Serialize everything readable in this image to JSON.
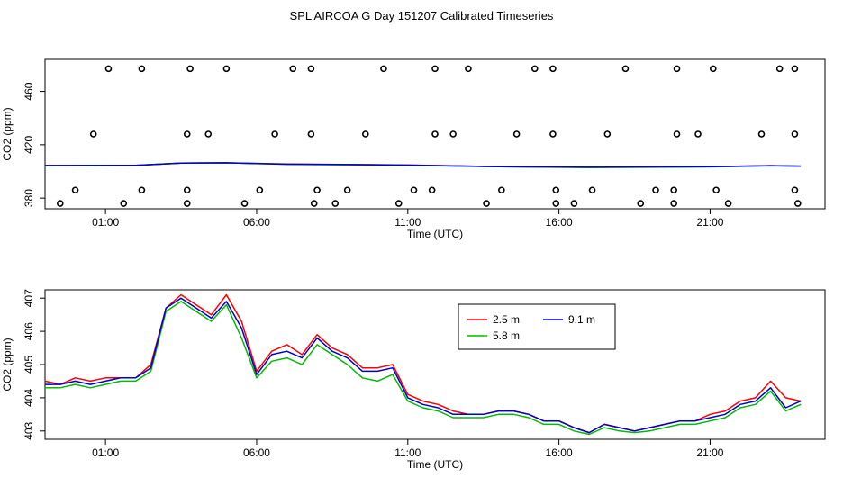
{
  "title": "SPL AIRCOA G  Day 151207  Calibrated Timeseries",
  "chart_data": [
    {
      "type": "scatter+line",
      "xlabel": "Time (UTC)",
      "ylabel": "CO2 (ppm)",
      "x_units": "hours UTC",
      "xlim": [
        -1.0,
        24.8
      ],
      "ylim": [
        372,
        484
      ],
      "x_ticks": [
        {
          "value": 1,
          "label": "01:00"
        },
        {
          "value": 6,
          "label": "06:00"
        },
        {
          "value": 11,
          "label": "11:00"
        },
        {
          "value": 16,
          "label": "16:00"
        },
        {
          "value": 21,
          "label": "21:00"
        }
      ],
      "y_ticks": [
        {
          "value": 380,
          "label": "380"
        },
        {
          "value": 420,
          "label": "420"
        },
        {
          "value": 460,
          "label": "460"
        }
      ],
      "calibration_points": [
        [
          1.1,
          477
        ],
        [
          2.2,
          477
        ],
        [
          3.8,
          477
        ],
        [
          5.0,
          477
        ],
        [
          7.2,
          477
        ],
        [
          7.8,
          477
        ],
        [
          10.2,
          477
        ],
        [
          11.9,
          477
        ],
        [
          13.0,
          477
        ],
        [
          15.2,
          477
        ],
        [
          15.8,
          477
        ],
        [
          18.2,
          477
        ],
        [
          19.9,
          477
        ],
        [
          21.1,
          477
        ],
        [
          23.3,
          477
        ],
        [
          23.8,
          477
        ],
        [
          0.6,
          428
        ],
        [
          3.7,
          428
        ],
        [
          4.4,
          428
        ],
        [
          6.6,
          428
        ],
        [
          7.8,
          428
        ],
        [
          9.6,
          428
        ],
        [
          11.9,
          428
        ],
        [
          12.5,
          428
        ],
        [
          14.6,
          428
        ],
        [
          15.8,
          428
        ],
        [
          17.6,
          428
        ],
        [
          19.9,
          428
        ],
        [
          20.6,
          428
        ],
        [
          22.7,
          428
        ],
        [
          23.8,
          428
        ],
        [
          0.0,
          386
        ],
        [
          2.2,
          386
        ],
        [
          3.7,
          386
        ],
        [
          6.1,
          386
        ],
        [
          8.0,
          386
        ],
        [
          9.0,
          386
        ],
        [
          11.2,
          386
        ],
        [
          11.8,
          386
        ],
        [
          14.1,
          386
        ],
        [
          15.9,
          386
        ],
        [
          17.1,
          386
        ],
        [
          19.2,
          386
        ],
        [
          19.8,
          386
        ],
        [
          21.2,
          386
        ],
        [
          23.8,
          386
        ],
        [
          -0.5,
          376
        ],
        [
          1.6,
          376
        ],
        [
          3.7,
          376
        ],
        [
          5.6,
          376
        ],
        [
          7.9,
          376
        ],
        [
          8.6,
          376
        ],
        [
          10.7,
          376
        ],
        [
          13.6,
          376
        ],
        [
          15.9,
          376
        ],
        [
          16.5,
          376
        ],
        [
          18.7,
          376
        ],
        [
          19.8,
          376
        ],
        [
          21.6,
          376
        ],
        [
          23.9,
          376
        ]
      ],
      "series": [
        {
          "color": "#ff0000",
          "x": [
            -1,
            2,
            3.5,
            5,
            7,
            9,
            11,
            14,
            17,
            21,
            23,
            24
          ],
          "y": [
            404.5,
            404.6,
            406.3,
            406.5,
            405.5,
            405.2,
            404.8,
            403.6,
            403.1,
            403.6,
            404.3,
            404.0
          ]
        },
        {
          "color": "#00bb00",
          "x": [
            -1,
            2,
            3.5,
            5,
            7,
            9,
            11,
            14,
            17,
            21,
            23,
            24
          ],
          "y": [
            404.3,
            404.5,
            406.2,
            406.4,
            405.3,
            405.0,
            404.6,
            403.5,
            403.0,
            403.4,
            404.2,
            403.9
          ]
        },
        {
          "color": "#0000cc",
          "x": [
            -1,
            2,
            3.5,
            5,
            7,
            9,
            11,
            14,
            17,
            21,
            23,
            24
          ],
          "y": [
            404.4,
            404.6,
            406.3,
            406.5,
            405.4,
            405.1,
            404.7,
            403.6,
            403.1,
            403.5,
            404.3,
            404.0
          ]
        }
      ]
    },
    {
      "type": "line",
      "xlabel": "Time (UTC)",
      "ylabel": "CO2 (ppm)",
      "x_units": "hours UTC",
      "xlim": [
        -1.0,
        24.8
      ],
      "ylim": [
        402.75,
        407.25
      ],
      "x_ticks": [
        {
          "value": 1,
          "label": "01:00"
        },
        {
          "value": 6,
          "label": "06:00"
        },
        {
          "value": 11,
          "label": "11:00"
        },
        {
          "value": 16,
          "label": "16:00"
        },
        {
          "value": 21,
          "label": "21:00"
        }
      ],
      "y_ticks": [
        {
          "value": 403,
          "label": "403"
        },
        {
          "value": 404,
          "label": "404"
        },
        {
          "value": 405,
          "label": "405"
        },
        {
          "value": 406,
          "label": "406"
        },
        {
          "value": 407,
          "label": "407"
        }
      ],
      "legend_position": "top-right",
      "x": [
        -1,
        -0.5,
        0,
        0.5,
        1,
        1.5,
        2,
        2.5,
        3,
        3.5,
        4,
        4.5,
        5,
        5.5,
        6,
        6.5,
        7,
        7.5,
        8,
        8.5,
        9,
        9.5,
        10,
        10.5,
        11,
        11.5,
        12,
        12.5,
        13,
        13.5,
        14,
        14.5,
        15,
        15.5,
        16,
        16.5,
        17,
        17.5,
        18,
        18.5,
        19,
        19.5,
        20,
        20.5,
        21,
        21.5,
        22,
        22.5,
        23,
        23.5,
        24
      ],
      "series": [
        {
          "name": "2.5 m",
          "color": "#ff0000",
          "y": [
            404.5,
            404.4,
            404.6,
            404.5,
            404.6,
            404.6,
            404.6,
            405.0,
            406.7,
            407.1,
            406.8,
            406.5,
            407.1,
            406.3,
            404.8,
            405.4,
            405.6,
            405.3,
            405.9,
            405.5,
            405.3,
            404.9,
            404.9,
            405.0,
            404.1,
            403.9,
            403.8,
            403.6,
            403.5,
            403.5,
            403.6,
            403.6,
            403.5,
            403.3,
            403.3,
            403.1,
            402.95,
            403.2,
            403.1,
            403.0,
            403.1,
            403.2,
            403.3,
            403.3,
            403.5,
            403.6,
            403.9,
            404.0,
            404.5,
            404.0,
            403.9
          ]
        },
        {
          "name": "5.8 m",
          "color": "#00bb00",
          "y": [
            404.3,
            404.3,
            404.4,
            404.3,
            404.4,
            404.5,
            404.5,
            404.8,
            406.6,
            406.9,
            406.6,
            406.3,
            406.8,
            405.8,
            404.6,
            405.1,
            405.2,
            405.0,
            405.6,
            405.3,
            405.0,
            404.6,
            404.5,
            404.7,
            403.9,
            403.7,
            403.6,
            403.4,
            403.4,
            403.4,
            403.5,
            403.5,
            403.4,
            403.2,
            403.2,
            403.0,
            402.9,
            403.1,
            403.0,
            402.95,
            403.0,
            403.1,
            403.2,
            403.2,
            403.3,
            403.4,
            403.7,
            403.8,
            404.2,
            403.6,
            403.8
          ]
        },
        {
          "name": "9.1 m",
          "color": "#0000cc",
          "y": [
            404.4,
            404.4,
            404.5,
            404.4,
            404.5,
            404.6,
            404.6,
            404.9,
            406.7,
            407.0,
            406.7,
            406.4,
            406.9,
            406.1,
            404.7,
            405.3,
            405.4,
            405.2,
            405.8,
            405.4,
            405.2,
            404.8,
            404.8,
            404.9,
            404.0,
            403.8,
            403.7,
            403.5,
            403.5,
            403.5,
            403.6,
            403.6,
            403.5,
            403.3,
            403.3,
            403.1,
            402.95,
            403.2,
            403.1,
            403.0,
            403.1,
            403.2,
            403.3,
            403.3,
            403.4,
            403.5,
            403.8,
            403.9,
            404.3,
            403.7,
            403.9
          ]
        }
      ]
    }
  ]
}
